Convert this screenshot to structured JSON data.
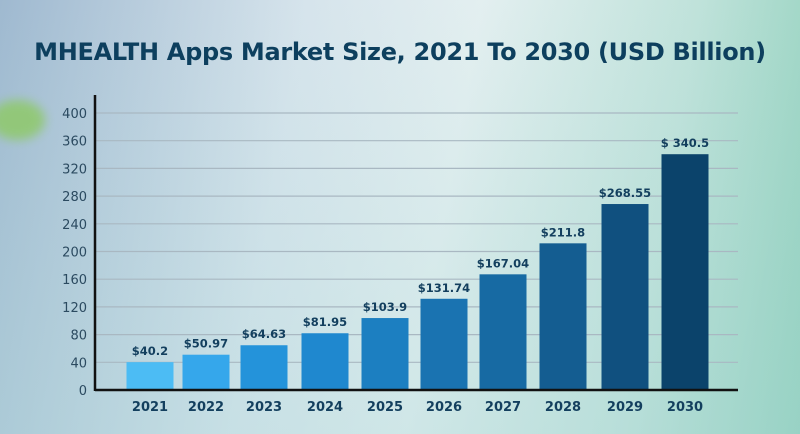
{
  "chart_data": {
    "type": "bar",
    "title": "MHEALTH Apps Market Size, 2021 To 2030 (USD Billion)",
    "xlabel": "",
    "ylabel": "",
    "categories": [
      "2021",
      "2022",
      "2023",
      "2024",
      "2025",
      "2026",
      "2027",
      "2028",
      "2029",
      "2030"
    ],
    "values": [
      40.2,
      50.97,
      64.63,
      81.95,
      103.9,
      131.74,
      167.04,
      211.8,
      268.55,
      340.5
    ],
    "data_labels": [
      "$40.2",
      "$50.97",
      "$64.63",
      "$81.95",
      "$103.9",
      "$131.74",
      "$167.04",
      "$211.8",
      "$268.55",
      "$ 340.5"
    ],
    "ylim": [
      0,
      400
    ],
    "yticks": [
      0,
      40,
      80,
      120,
      160,
      200,
      240,
      280,
      320,
      360,
      400
    ],
    "grid": true,
    "bar_colors": [
      "#4cbcf4",
      "#35a7eb",
      "#2493da",
      "#1f88cf",
      "#1c7fc1",
      "#1a73b1",
      "#176aa3",
      "#145d91",
      "#10507f",
      "#0b436b"
    ]
  }
}
